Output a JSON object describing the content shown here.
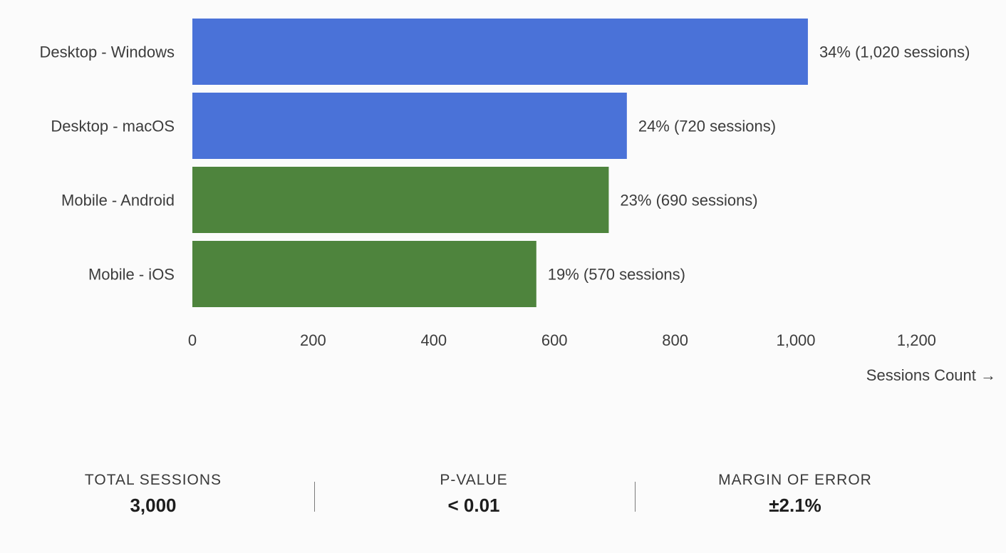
{
  "chart_data": {
    "type": "bar",
    "orientation": "horizontal",
    "categories": [
      "Desktop - Windows",
      "Desktop - macOS",
      "Mobile - Android",
      "Mobile - iOS"
    ],
    "values": [
      1020,
      720,
      690,
      570
    ],
    "percent_labels": [
      "34%",
      "24%",
      "23%",
      "19%"
    ],
    "data_labels": [
      "34% (1,020 sessions)",
      "24% (720 sessions)",
      "23% (690 sessions)",
      "19% (570 sessions)"
    ],
    "bar_colors": [
      "#4a72d8",
      "#4a72d8",
      "#4e843d",
      "#4e843d"
    ],
    "x_ticks": [
      0,
      200,
      400,
      600,
      800,
      1000,
      1200
    ],
    "x_tick_labels": [
      "0",
      "200",
      "400",
      "600",
      "800",
      "1,000",
      "1,200"
    ],
    "xlabel": "Sessions Count →",
    "ylabel": "",
    "title": "",
    "xlim": [
      0,
      1200
    ],
    "grid": false,
    "legend": "none"
  },
  "stats": {
    "total_sessions": {
      "label": "TOTAL SESSIONS",
      "value": "3,000"
    },
    "p_value": {
      "label": "P-VALUE",
      "value": "< 0.01"
    },
    "margin_of_error": {
      "label": "MARGIN OF ERROR",
      "value": "±2.1%"
    }
  }
}
